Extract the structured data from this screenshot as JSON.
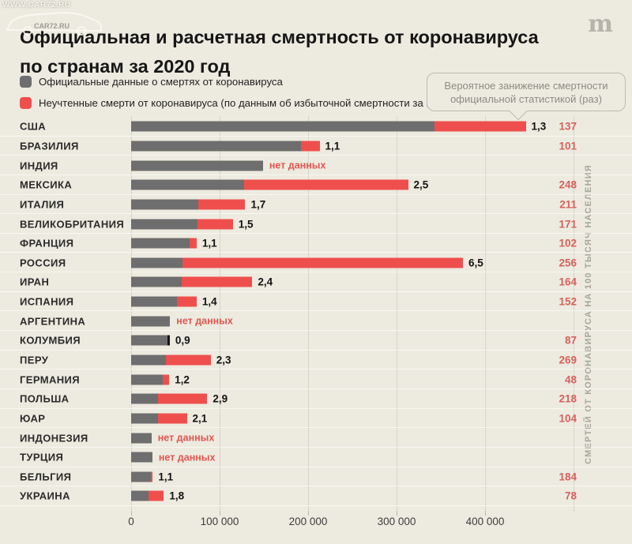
{
  "watermark": {
    "top_text": "WWW.CAR72.RU",
    "car_text": "CAR72.RU"
  },
  "header": {
    "title_line1": "Официальная и расчетная смертность от коронавируса",
    "title_line2": "по странам за 2020 год",
    "logo_glyph": "m"
  },
  "legend": {
    "items": [
      {
        "label": "Официальные данные о смертях от коронавируса",
        "color": "#6e6e6e"
      },
      {
        "label": "Неучтенные смерти от коронавируса (по данным об избыточной смертности за год)",
        "color": "#ee4f4d"
      }
    ]
  },
  "callout": {
    "line1": "Вероятное занижение смертности",
    "line2": "официальной статистикой (раз)"
  },
  "right_axis_title": "СМЕРТЕЙ ОТ КОРОНАВИРУСА НА 100 ТЫСЯЧ НАСЕЛЕНИЯ",
  "colors": {
    "background": "#edebe0",
    "official_bar": "#6e6e6e",
    "excess_bar": "#ee4f4d",
    "accent_red_text": "#d8615c",
    "gridline": "#d7d5c8"
  },
  "chart_data": {
    "type": "bar",
    "orientation": "horizontal-stacked",
    "title": "Официальная и расчетная смертность от коронавируса по странам за 2020 год",
    "x_axis": {
      "tick_labels": [
        "0",
        "100 000",
        "200 000",
        "300 000",
        "400 000"
      ],
      "tick_values": [
        0,
        100000,
        200000,
        300000,
        400000
      ],
      "xlim": [
        0,
        500000
      ],
      "grid": true
    },
    "no_data_label": "нет данных",
    "categories": [
      "США",
      "БРАЗИЛИЯ",
      "ИНДИЯ",
      "МЕКСИКА",
      "ИТАЛИЯ",
      "ВЕЛИКОБРИТАНИЯ",
      "ФРАНЦИЯ",
      "РОССИЯ",
      "ИРАН",
      "ИСПАНИЯ",
      "АРГЕНТИНА",
      "КОЛУМБИЯ",
      "ПЕРУ",
      "ГЕРМАНИЯ",
      "ПОЛЬША",
      "ЮАР",
      "ИНДОНЕЗИЯ",
      "ТУРЦИЯ",
      "БЕЛЬГИЯ",
      "УКРАИНА"
    ],
    "series": [
      {
        "name": "Официальные данные о смертях от коронавируса",
        "values": [
          343000,
          192000,
          149000,
          128000,
          76000,
          75000,
          66000,
          58000,
          57000,
          52000,
          44000,
          41000,
          39000,
          36000,
          30000,
          30000,
          23000,
          24000,
          22000,
          20000
        ]
      },
      {
        "name": "Неучтенные смерти от коронавируса",
        "values": [
          103000,
          21000,
          null,
          185000,
          53000,
          40000,
          8000,
          317000,
          80000,
          22000,
          null,
          0,
          51000,
          7000,
          56000,
          33000,
          null,
          null,
          2500,
          17000
        ]
      }
    ],
    "ratio_labels": [
      "1,3",
      "1,1",
      "нет данных",
      "2,5",
      "1,7",
      "1,5",
      "1,1",
      "6,5",
      "2,4",
      "1,4",
      "нет данных",
      "0,9",
      "2,3",
      "1,2",
      "2,9",
      "2,1",
      "нет данных",
      "нет данных",
      "1,1",
      "1,8"
    ],
    "deaths_per_100k": [
      "137",
      "101",
      null,
      "248",
      "211",
      "171",
      "102",
      "256",
      "164",
      "152",
      null,
      "87",
      "269",
      "48",
      "218",
      "104",
      null,
      null,
      "184",
      "78"
    ],
    "legend_position": "top-left"
  },
  "rows": [
    {
      "country": "США",
      "official": 343000,
      "excess": 103000,
      "ratio": "1,3",
      "per_100k": "137",
      "no_data": false,
      "marker": null
    },
    {
      "country": "БРАЗИЛИЯ",
      "official": 192000,
      "excess": 21000,
      "ratio": "1,1",
      "per_100k": "101",
      "no_data": false,
      "marker": null
    },
    {
      "country": "ИНДИЯ",
      "official": 149000,
      "excess": null,
      "ratio": "нет данных",
      "per_100k": null,
      "no_data": true,
      "marker": null
    },
    {
      "country": "МЕКСИКА",
      "official": 128000,
      "excess": 185000,
      "ratio": "2,5",
      "per_100k": "248",
      "no_data": false,
      "marker": null
    },
    {
      "country": "ИТАЛИЯ",
      "official": 76000,
      "excess": 53000,
      "ratio": "1,7",
      "per_100k": "211",
      "no_data": false,
      "marker": null
    },
    {
      "country": "ВЕЛИКОБРИТАНИЯ",
      "official": 75000,
      "excess": 40000,
      "ratio": "1,5",
      "per_100k": "171",
      "no_data": false,
      "marker": null
    },
    {
      "country": "ФРАНЦИЯ",
      "official": 66000,
      "excess": 8000,
      "ratio": "1,1",
      "per_100k": "102",
      "no_data": false,
      "marker": null
    },
    {
      "country": "РОССИЯ",
      "official": 58000,
      "excess": 317000,
      "ratio": "6,5",
      "per_100k": "256",
      "no_data": false,
      "marker": null
    },
    {
      "country": "ИРАН",
      "official": 57000,
      "excess": 80000,
      "ratio": "2,4",
      "per_100k": "164",
      "no_data": false,
      "marker": null
    },
    {
      "country": "ИСПАНИЯ",
      "official": 52000,
      "excess": 22000,
      "ratio": "1,4",
      "per_100k": "152",
      "no_data": false,
      "marker": null
    },
    {
      "country": "АРГЕНТИНА",
      "official": 44000,
      "excess": null,
      "ratio": "нет данных",
      "per_100k": null,
      "no_data": true,
      "marker": null
    },
    {
      "country": "КОЛУМБИЯ",
      "official": 41000,
      "excess": 0,
      "ratio": "0,9",
      "per_100k": "87",
      "no_data": false,
      "marker": "black-tick"
    },
    {
      "country": "ПЕРУ",
      "official": 39000,
      "excess": 51000,
      "ratio": "2,3",
      "per_100k": "269",
      "no_data": false,
      "marker": null
    },
    {
      "country": "ГЕРМАНИЯ",
      "official": 36000,
      "excess": 7000,
      "ratio": "1,2",
      "per_100k": "48",
      "no_data": false,
      "marker": null
    },
    {
      "country": "ПОЛЬША",
      "official": 30000,
      "excess": 56000,
      "ratio": "2,9",
      "per_100k": "218",
      "no_data": false,
      "marker": null
    },
    {
      "country": "ЮАР",
      "official": 30000,
      "excess": 33000,
      "ratio": "2,1",
      "per_100k": "104",
      "no_data": false,
      "marker": null
    },
    {
      "country": "ИНДОНЕЗИЯ",
      "official": 23000,
      "excess": null,
      "ratio": "нет данных",
      "per_100k": null,
      "no_data": true,
      "marker": null
    },
    {
      "country": "ТУРЦИЯ",
      "official": 24000,
      "excess": null,
      "ratio": "нет данных",
      "per_100k": null,
      "no_data": true,
      "marker": null
    },
    {
      "country": "БЕЛЬГИЯ",
      "official": 22000,
      "excess": 2500,
      "ratio": "1,1",
      "per_100k": "184",
      "no_data": false,
      "marker": null
    },
    {
      "country": "УКРАИНА",
      "official": 20000,
      "excess": 17000,
      "ratio": "1,8",
      "per_100k": "78",
      "no_data": false,
      "marker": null
    }
  ]
}
